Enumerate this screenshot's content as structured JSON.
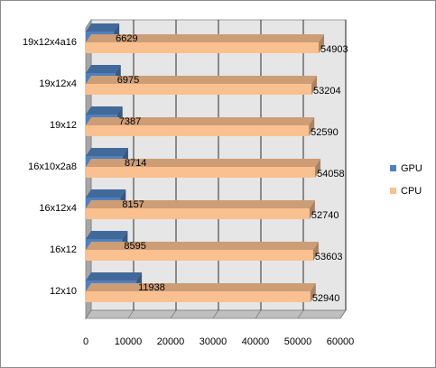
{
  "chart_data": {
    "type": "bar",
    "orientation": "horizontal",
    "style": "3d-clustered",
    "categories": [
      "12x10",
      "16x12",
      "16x12x4",
      "16x10x2a8",
      "19x12",
      "19x12x4",
      "19x12x4a16"
    ],
    "series": [
      {
        "name": "GPU",
        "color": "#4f81bd",
        "values": [
          11938,
          8595,
          8157,
          8714,
          7387,
          6975,
          6629
        ]
      },
      {
        "name": "CPU",
        "color": "#fac08f",
        "values": [
          52940,
          53603,
          52740,
          54058,
          52590,
          53204,
          54903
        ]
      }
    ],
    "xlim": [
      0,
      60000
    ],
    "xticks": [
      "0",
      "10000",
      "20000",
      "30000",
      "40000",
      "50000",
      "60000"
    ],
    "data_labels": true,
    "grid": true,
    "legend_position": "right",
    "title": "",
    "xlabel": "",
    "ylabel": ""
  },
  "colors": {
    "plot_back_wall": "#e6e6e6",
    "plot_side_wall": "#a6a6a6",
    "plot_floor": "#bfbfbf",
    "gridline": "#000000"
  }
}
